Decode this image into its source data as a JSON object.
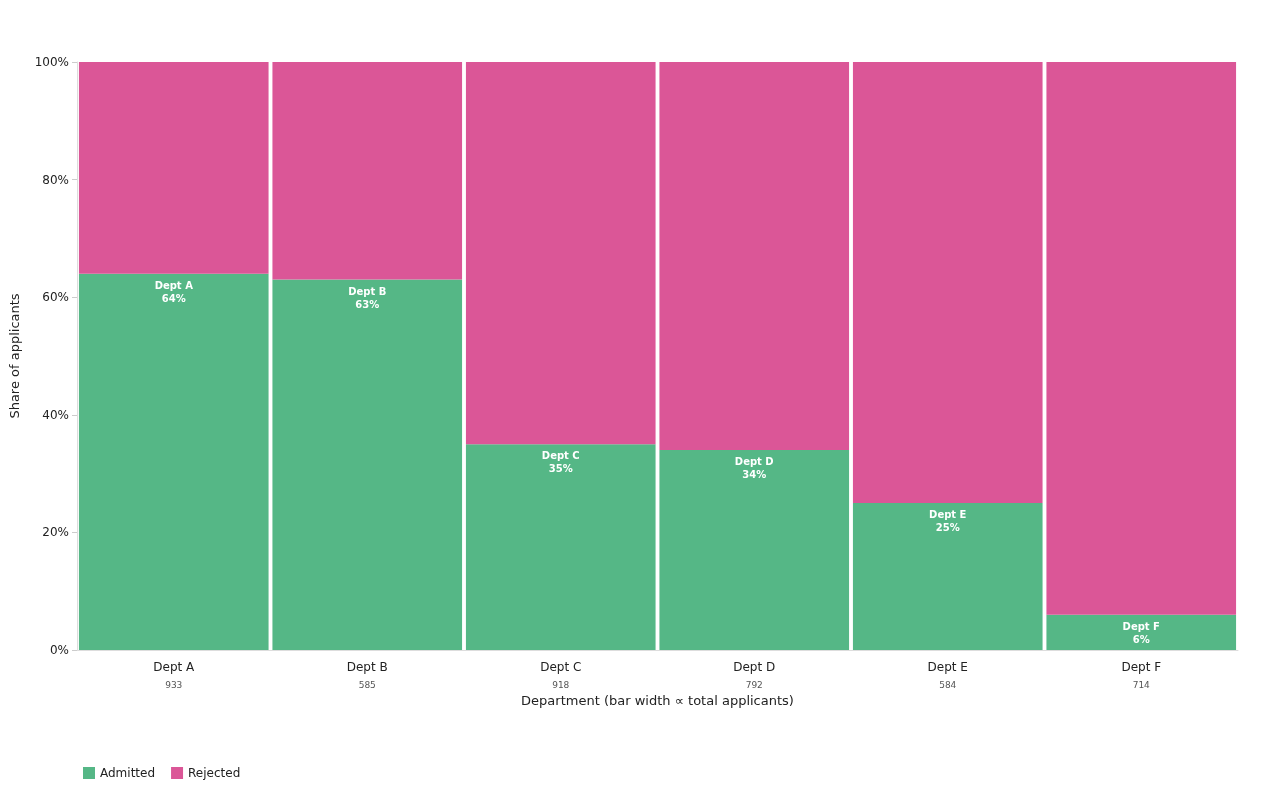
{
  "chart_data": {
    "type": "bar",
    "stacked": true,
    "xlabel": "Department (bar width ∝ total applicants)",
    "ylabel": "Share of applicants",
    "categories": [
      "Dept A",
      "Dept B",
      "Dept C",
      "Dept D",
      "Dept E",
      "Dept F"
    ],
    "series": [
      {
        "name": "Admitted",
        "color": "#55b786",
        "values": [
          64,
          63,
          35,
          34,
          25,
          6
        ],
        "value_labels": [
          "Dept A\n64%",
          "Dept B\n63%",
          "Dept C\n35%",
          "Dept D\n34%",
          "Dept E\n25%",
          "Dept F\n6%"
        ]
      },
      {
        "name": "Rejected",
        "color": "#db5697",
        "values": [
          36,
          37,
          65,
          66,
          75,
          94
        ]
      }
    ],
    "annotations": [
      "933",
      "585",
      "918",
      "792",
      "584",
      "714"
    ],
    "ylim": [
      0,
      100
    ],
    "yticks": [
      {
        "value": 0,
        "label": "0%"
      },
      {
        "value": 20,
        "label": "20%"
      },
      {
        "value": 40,
        "label": "40%"
      },
      {
        "value": 60,
        "label": "60%"
      },
      {
        "value": 80,
        "label": "80%"
      },
      {
        "value": 100,
        "label": "100%"
      }
    ],
    "legend": "bottom left",
    "grid": false
  }
}
